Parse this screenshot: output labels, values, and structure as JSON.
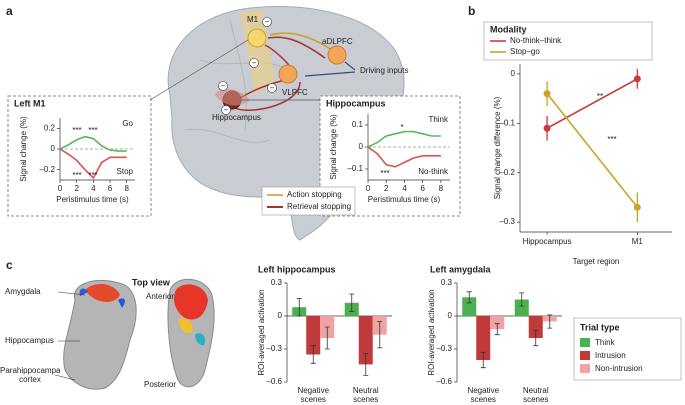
{
  "panel_labels": [
    "a",
    "b",
    "c"
  ],
  "brain": {
    "labels": [
      "M1",
      "aDLPFC",
      "VLPFC",
      "Hippocampus",
      "Driving inputs"
    ],
    "inhibition_sign": "−",
    "legend": [
      {
        "name": "Action stopping",
        "color": "#e0b060"
      },
      {
        "name": "Retrieval stopping",
        "color": "#a8322e"
      }
    ]
  },
  "anatomy": {
    "title": "Top view",
    "labels": [
      "Amygdala",
      "Hippocampus",
      "Parahippocampal cortex"
    ],
    "directions": [
      "Anterior",
      "Posterior"
    ]
  },
  "chart_data": [
    {
      "type": "line",
      "title": "Left M1",
      "xlabel": "Peristimulus time (s)",
      "ylabel": "Signal change (%)",
      "x": [
        0,
        1,
        2,
        3,
        4,
        5,
        6,
        7,
        8
      ],
      "xlim": [
        0,
        9
      ],
      "xticks": [
        0,
        2,
        4,
        6,
        8
      ],
      "ylim": [
        -0.3,
        0.3
      ],
      "yticks": [
        {
          "value": -0.2,
          "label": "–0.2"
        },
        0,
        0.2
      ],
      "series": [
        {
          "name": "Go",
          "color": "#5cb85c",
          "values": [
            0,
            0.04,
            0.09,
            0.12,
            0.1,
            0.03,
            -0.01,
            -0.02,
            -0.02
          ]
        },
        {
          "name": "Stop",
          "color": "#d9534f",
          "values": [
            0,
            -0.05,
            -0.11,
            -0.2,
            -0.28,
            -0.13,
            -0.08,
            -0.08,
            -0.08
          ]
        }
      ],
      "annotations": [
        "***",
        "***",
        "***",
        "***"
      ]
    },
    {
      "type": "line",
      "title": "Hippocampus",
      "xlabel": "Peristimulus time (s)",
      "ylabel": "Signal change (%)",
      "x": [
        0,
        1,
        2,
        3,
        4,
        5,
        6,
        7,
        8
      ],
      "xlim": [
        0,
        9
      ],
      "xticks": [
        0,
        2,
        4,
        6,
        8
      ],
      "ylim": [
        -0.15,
        0.15
      ],
      "yticks": [
        {
          "value": -0.1,
          "label": "–0.1"
        },
        0,
        0.1
      ],
      "series": [
        {
          "name": "Think",
          "color": "#5cb85c",
          "values": [
            0,
            0.02,
            0.05,
            0.06,
            0.07,
            0.07,
            0.06,
            0.05,
            0.05
          ]
        },
        {
          "name": "No-think",
          "color": "#d9534f",
          "values": [
            0,
            -0.03,
            -0.08,
            -0.09,
            -0.07,
            -0.05,
            -0.04,
            -0.04,
            -0.04
          ]
        }
      ],
      "annotations": [
        "*",
        "***"
      ]
    },
    {
      "type": "line",
      "xlabel": "Target region",
      "ylabel": "Signal change difference (%)",
      "categories": [
        "Hippocampus",
        "M1"
      ],
      "ylim": [
        -0.32,
        0.02
      ],
      "yticks": [
        {
          "value": -0.3,
          "label": "–0.3"
        },
        {
          "value": -0.2,
          "label": "–0.2"
        },
        {
          "value": -0.1,
          "label": "–0.1"
        },
        0
      ],
      "legend_title": "Modality",
      "series": [
        {
          "name": "No-think–think",
          "color": "#cc3b3b",
          "values": [
            -0.11,
            -0.01
          ],
          "errors": [
            0.025,
            0.02
          ]
        },
        {
          "name": "Stop–go",
          "color": "#c9a227",
          "values": [
            -0.04,
            -0.27
          ],
          "errors": [
            0.025,
            0.03
          ]
        }
      ],
      "annotations": [
        "**",
        "***"
      ]
    },
    {
      "type": "bar",
      "title": "Left hippocampus",
      "ylabel": "ROI-averaged activation",
      "categories": [
        "Negative scenes",
        "Neutral scenes"
      ],
      "ylim": [
        -0.6,
        0.3
      ],
      "yticks": [
        {
          "value": -0.6,
          "label": "–0.6"
        },
        {
          "value": -0.3,
          "label": "–0.3"
        },
        0,
        0.3
      ],
      "series": [
        {
          "name": "Think",
          "color": "#4caf50",
          "values": [
            0.08,
            0.12
          ],
          "errors": [
            0.08,
            0.08
          ]
        },
        {
          "name": "Intrusion",
          "color": "#c0393b",
          "values": [
            -0.35,
            -0.44
          ],
          "errors": [
            0.08,
            0.1
          ]
        },
        {
          "name": "Non-intrusion",
          "color": "#f0a3a3",
          "values": [
            -0.2,
            -0.17
          ],
          "errors": [
            0.1,
            0.12
          ]
        }
      ]
    },
    {
      "type": "bar",
      "title": "Left amygdala",
      "ylabel": "ROI-averaged activation",
      "categories": [
        "Negative scenes",
        "Neutral scenes"
      ],
      "ylim": [
        -0.6,
        0.3
      ],
      "yticks": [
        {
          "value": -0.6,
          "label": "–0.6"
        },
        {
          "value": -0.3,
          "label": "–0.3"
        },
        0,
        0.3
      ],
      "legend_title": "Trial type",
      "series": [
        {
          "name": "Think",
          "color": "#4caf50",
          "values": [
            0.17,
            0.15
          ],
          "errors": [
            0.05,
            0.06
          ]
        },
        {
          "name": "Intrusion",
          "color": "#c0393b",
          "values": [
            -0.4,
            -0.2
          ],
          "errors": [
            0.07,
            0.07
          ]
        },
        {
          "name": "Non-intrusion",
          "color": "#f0a3a3",
          "values": [
            -0.12,
            -0.05
          ],
          "errors": [
            0.05,
            0.06
          ]
        }
      ]
    }
  ]
}
